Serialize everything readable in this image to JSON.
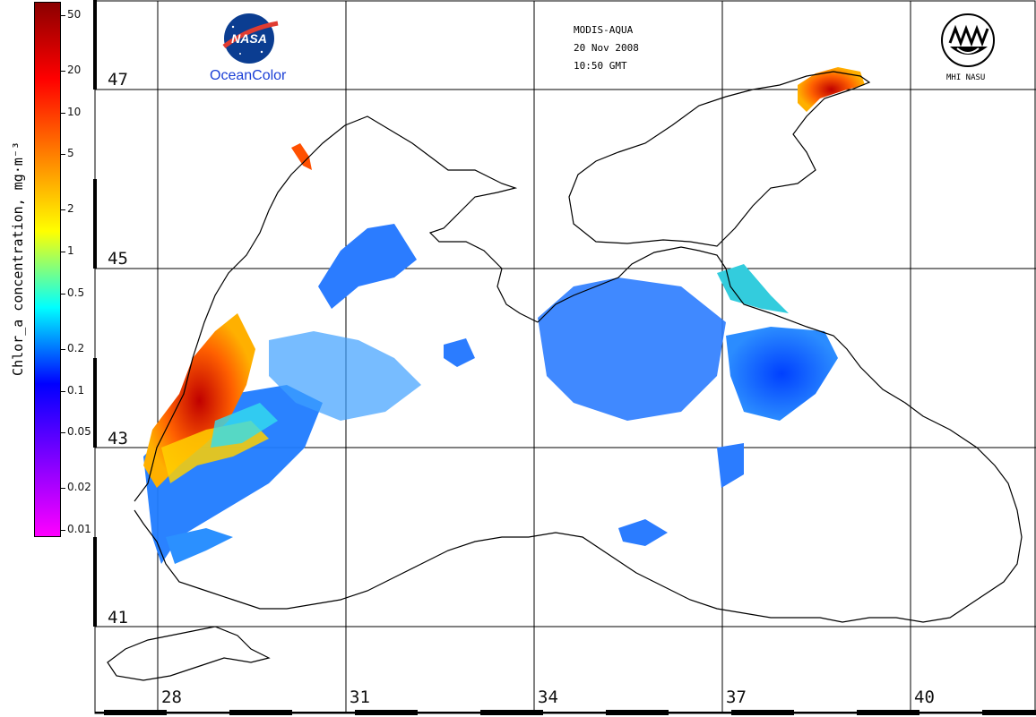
{
  "colorbar": {
    "title": "Chlor_a concentration, mg·m⁻³",
    "ticks": [
      "50",
      "20",
      "10",
      "5",
      "2",
      "1",
      "0.5",
      "0.2",
      "0.1",
      "0.05",
      "0.02",
      "0.01"
    ],
    "colors": [
      "#8b0000",
      "#ff0000",
      "#ff8000",
      "#ffff00",
      "#00ffff",
      "#0000ff",
      "#8000ff",
      "#ff00ff"
    ]
  },
  "header": {
    "sensor": "MODIS-AQUA",
    "date": "20 Nov 2008",
    "time": "10:50 GMT"
  },
  "logos": {
    "nasa_text": "NASA",
    "oceancolor": "OceanColor",
    "mhi_label": "MHI NASU"
  },
  "grid": {
    "latitudes": [
      "47",
      "45",
      "43",
      "41"
    ],
    "longitudes": [
      "28",
      "31",
      "34",
      "37",
      "40"
    ]
  },
  "style": {
    "land_color": "#ffffff",
    "coast_color": "#000000",
    "grid_color": "#000000"
  }
}
